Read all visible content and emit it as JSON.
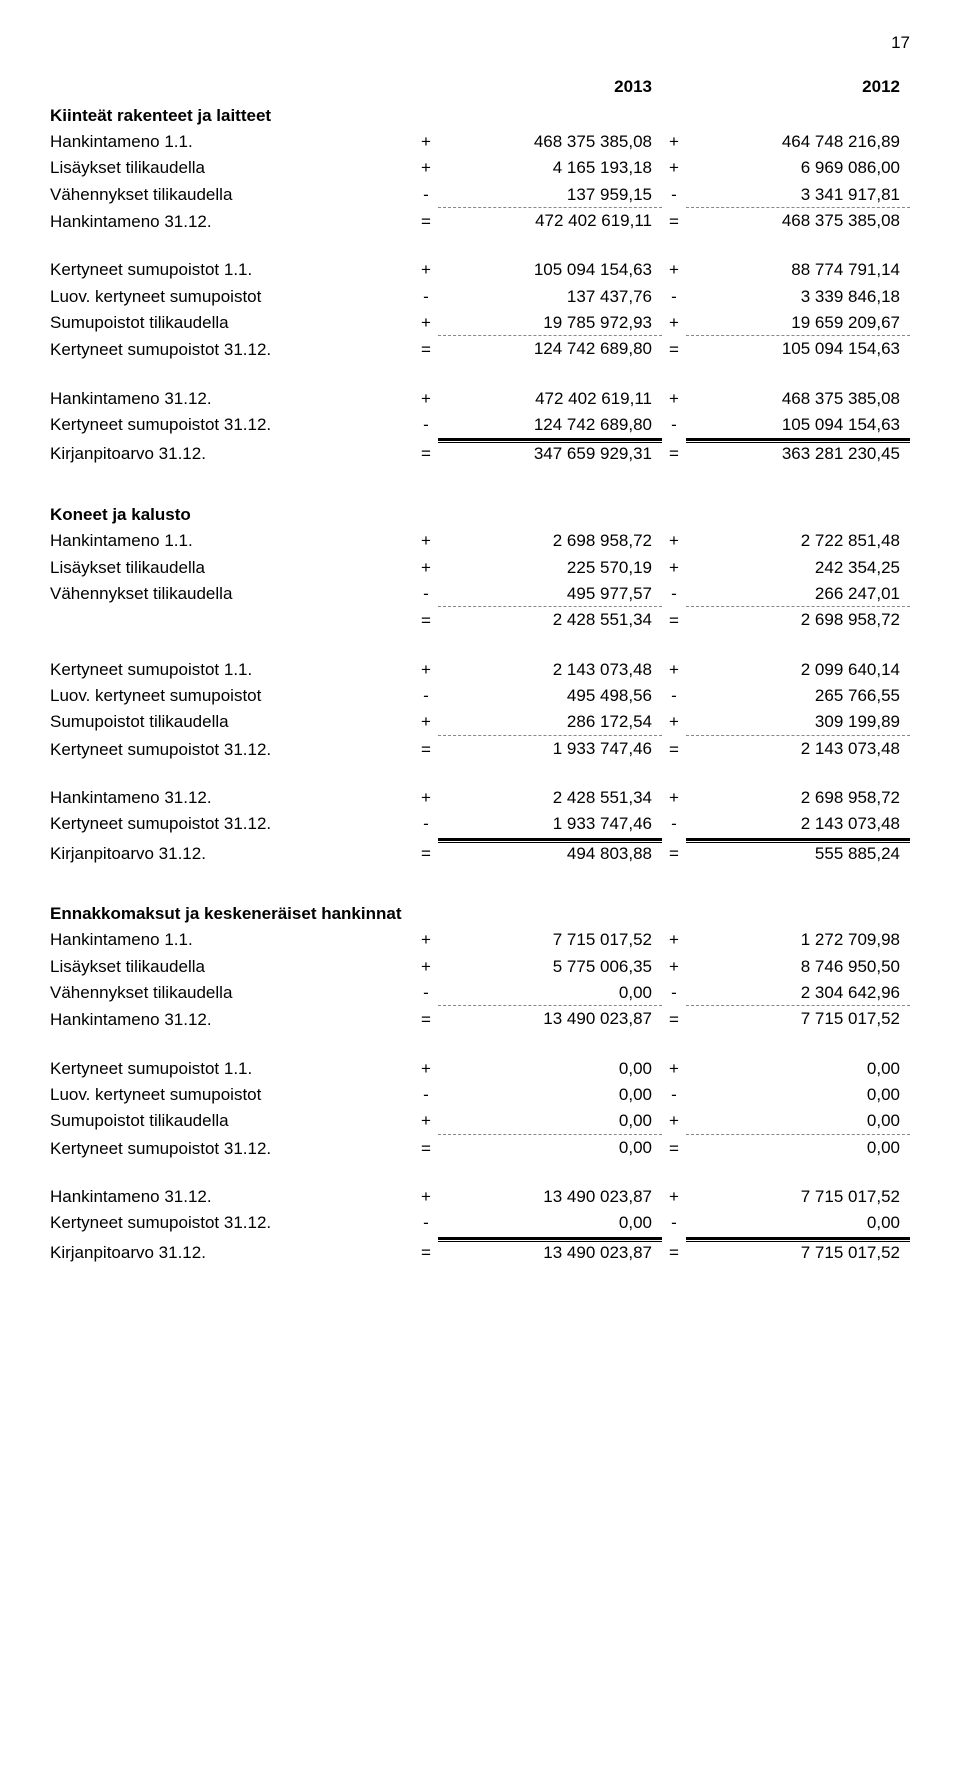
{
  "page_number": "17",
  "years": {
    "col1": "2013",
    "col2": "2012"
  },
  "sections": [
    {
      "heading": "Kiinteät rakenteet ja laitteet",
      "groups": [
        {
          "rows": [
            {
              "label": "Hankintameno 1.1.",
              "s1": "+",
              "v1": "468 375 385,08",
              "s2": "+",
              "v2": "464 748 216,89",
              "style": ""
            },
            {
              "label": "Lisäykset tilikaudella",
              "s1": "+",
              "v1": "4 165 193,18",
              "s2": "+",
              "v2": "6 969 086,00",
              "style": ""
            },
            {
              "label": "Vähennykset tilikaudella",
              "s1": "-",
              "v1": "137 959,15",
              "s2": "-",
              "v2": "3 341 917,81",
              "style": ""
            },
            {
              "label": "Hankintameno 31.12.",
              "s1": "=",
              "v1": "472 402 619,11",
              "s2": "=",
              "v2": "468 375 385,08",
              "style": "dashed-top"
            }
          ]
        },
        {
          "rows": [
            {
              "label": "Kertyneet sumupoistot 1.1.",
              "s1": "+",
              "v1": "105 094 154,63",
              "s2": "+",
              "v2": "88 774 791,14",
              "style": ""
            },
            {
              "label": "Luov. kertyneet sumupoistot",
              "s1": "-",
              "v1": "137 437,76",
              "s2": "-",
              "v2": "3 339 846,18",
              "style": ""
            },
            {
              "label": "Sumupoistot  tilikaudella",
              "s1": "+",
              "v1": "19 785 972,93",
              "s2": "+",
              "v2": "19 659 209,67",
              "style": ""
            },
            {
              "label": "Kertyneet sumupoistot 31.12.",
              "s1": "=",
              "v1": "124 742 689,80",
              "s2": "=",
              "v2": "105 094 154,63",
              "style": "dashed-top"
            }
          ]
        },
        {
          "rows": [
            {
              "label": "Hankintameno 31.12.",
              "s1": "+",
              "v1": "472 402 619,11",
              "s2": "+",
              "v2": "468 375 385,08",
              "style": ""
            },
            {
              "label": "Kertyneet sumupoistot 31.12.",
              "s1": "-",
              "v1": "124 742 689,80",
              "s2": "-",
              "v2": "105 094 154,63",
              "style": ""
            },
            {
              "label": "Kirjanpitoarvo 31.12.",
              "s1": "=",
              "v1": "347 659 929,31",
              "s2": "=",
              "v2": "363 281 230,45",
              "style": "double-line"
            }
          ]
        }
      ]
    },
    {
      "heading": "Koneet ja kalusto",
      "groups": [
        {
          "rows": [
            {
              "label": "Hankintameno 1.1.",
              "s1": "+",
              "v1": "2 698 958,72",
              "s2": "+",
              "v2": "2 722 851,48",
              "style": ""
            },
            {
              "label": "Lisäykset tilikaudella",
              "s1": "+",
              "v1": "225 570,19",
              "s2": "+",
              "v2": "242 354,25",
              "style": ""
            },
            {
              "label": "Vähennykset tilikaudella",
              "s1": "-",
              "v1": "495 977,57",
              "s2": "-",
              "v2": "266 247,01",
              "style": ""
            },
            {
              "label": "",
              "s1": "=",
              "v1": "2 428 551,34",
              "s2": "=",
              "v2": "2 698 958,72",
              "style": "dashed-top"
            }
          ]
        },
        {
          "rows": [
            {
              "label": "Kertyneet sumupoistot 1.1.",
              "s1": "+",
              "v1": "2 143 073,48",
              "s2": "+",
              "v2": "2 099 640,14",
              "style": ""
            },
            {
              "label": "Luov. kertyneet sumupoistot",
              "s1": "-",
              "v1": "495 498,56",
              "s2": "-",
              "v2": "265 766,55",
              "style": ""
            },
            {
              "label": "Sumupoistot  tilikaudella",
              "s1": "+",
              "v1": "286 172,54",
              "s2": "+",
              "v2": "309 199,89",
              "style": ""
            },
            {
              "label": "Kertyneet sumupoistot 31.12.",
              "s1": "=",
              "v1": "1 933 747,46",
              "s2": "=",
              "v2": "2 143 073,48",
              "style": "dashed-top"
            }
          ]
        },
        {
          "rows": [
            {
              "label": "Hankintameno 31.12.",
              "s1": "+",
              "v1": "2 428 551,34",
              "s2": "+",
              "v2": "2 698 958,72",
              "style": ""
            },
            {
              "label": "Kertyneet sumupoistot 31.12.",
              "s1": "-",
              "v1": "1 933 747,46",
              "s2": "-",
              "v2": "2 143 073,48",
              "style": ""
            },
            {
              "label": "Kirjanpitoarvo 31.12.",
              "s1": "=",
              "v1": "494 803,88",
              "s2": "=",
              "v2": "555 885,24",
              "style": "double-line"
            }
          ]
        }
      ]
    },
    {
      "heading": "Ennakkomaksut ja keskeneräiset hankinnat",
      "groups": [
        {
          "rows": [
            {
              "label": "Hankintameno 1.1.",
              "s1": "+",
              "v1": "7 715 017,52",
              "s2": "+",
              "v2": "1 272 709,98",
              "style": ""
            },
            {
              "label": "Lisäykset tilikaudella",
              "s1": "+",
              "v1": "5 775 006,35",
              "s2": "+",
              "v2": "8 746 950,50",
              "style": ""
            },
            {
              "label": "Vähennykset tilikaudella",
              "s1": "-",
              "v1": "0,00",
              "s2": "-",
              "v2": "2 304 642,96",
              "style": ""
            },
            {
              "label": "Hankintameno 31.12.",
              "s1": "=",
              "v1": "13 490 023,87",
              "s2": "=",
              "v2": "7 715 017,52",
              "style": "dashed-top"
            }
          ]
        },
        {
          "rows": [
            {
              "label": "Kertyneet sumupoistot 1.1.",
              "s1": "+",
              "v1": "0,00",
              "s2": "+",
              "v2": "0,00",
              "style": ""
            },
            {
              "label": "Luov. kertyneet sumupoistot",
              "s1": "-",
              "v1": "0,00",
              "s2": "-",
              "v2": "0,00",
              "style": ""
            },
            {
              "label": "Sumupoistot  tilikaudella",
              "s1": "+",
              "v1": "0,00",
              "s2": "+",
              "v2": "0,00",
              "style": ""
            },
            {
              "label": "Kertyneet sumupoistot 31.12.",
              "s1": "=",
              "v1": "0,00",
              "s2": "=",
              "v2": "0,00",
              "style": "dashed-top"
            }
          ]
        },
        {
          "rows": [
            {
              "label": "Hankintameno 31.12.",
              "s1": "+",
              "v1": "13 490 023,87",
              "s2": "+",
              "v2": "7 715 017,52",
              "style": ""
            },
            {
              "label": "Kertyneet sumupoistot 31.12.",
              "s1": "-",
              "v1": "0,00",
              "s2": "-",
              "v2": "0,00",
              "style": ""
            },
            {
              "label": "Kirjanpitoarvo 31.12.",
              "s1": "=",
              "v1": "13 490 023,87",
              "s2": "=",
              "v2": "7 715 017,52",
              "style": "double-line"
            }
          ]
        }
      ]
    }
  ]
}
